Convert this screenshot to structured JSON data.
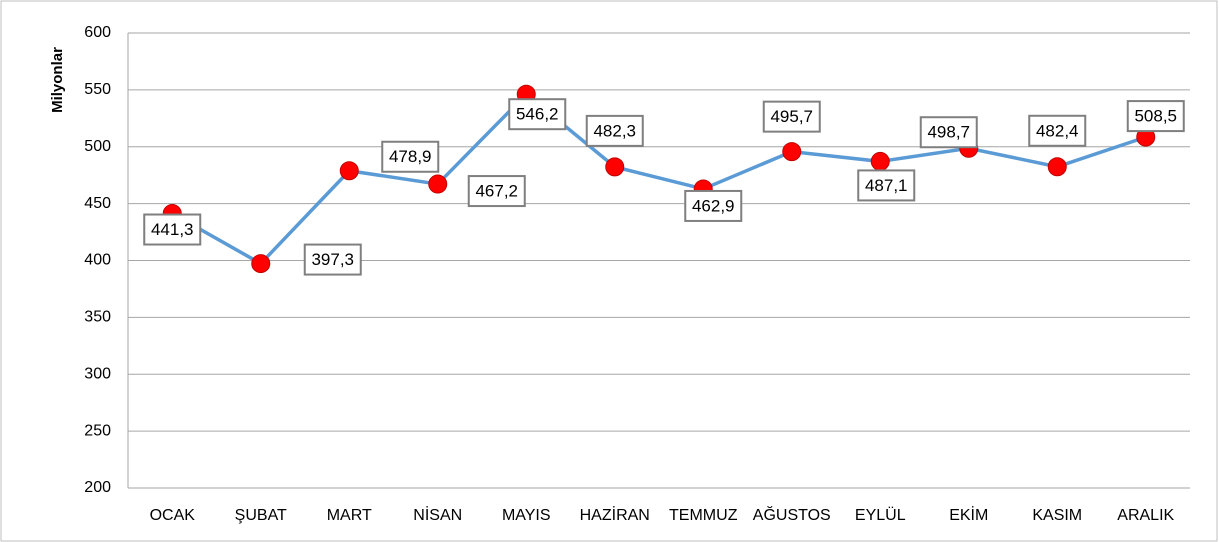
{
  "chart_data": {
    "type": "line",
    "y_label": "Milyonlar",
    "categories": [
      "OCAK",
      "ŞUBAT",
      "MART",
      "NİSAN",
      "MAYIS",
      "HAZİRAN",
      "TEMMUZ",
      "AĞUSTOS",
      "EYLÜL",
      "EKİM",
      "KASIM",
      "ARALIK"
    ],
    "values": [
      441.3,
      397.3,
      478.9,
      467.2,
      546.2,
      482.3,
      462.9,
      495.7,
      487.1,
      498.7,
      482.4,
      508.5
    ],
    "value_labels": [
      "441,3",
      "397,3",
      "478,9",
      "467,2",
      "546,2",
      "482,3",
      "462,9",
      "495,7",
      "487,1",
      "498,7",
      "482,4",
      "508,5"
    ],
    "color": "#5b9bd5",
    "marker_color": "#ff0000",
    "ylim": [
      200,
      600
    ],
    "yticks": [
      200,
      250,
      300,
      350,
      400,
      450,
      500,
      550,
      600
    ],
    "grid": true
  }
}
